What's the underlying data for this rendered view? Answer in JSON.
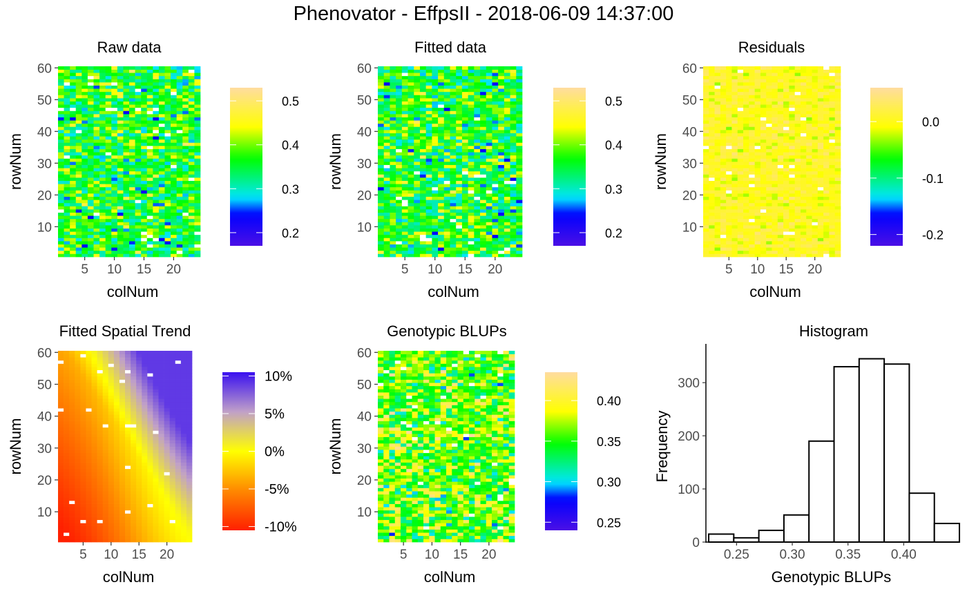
{
  "title": "Phenovator - EffpsII - 2018-06-09 14:37:00",
  "colors": {
    "heat_palette": [
      "#4B0FE6",
      "#0000FF",
      "#00E5FF",
      "#00FF00",
      "#FFFF00",
      "#FFDCA0"
    ],
    "trend_palette": [
      "#FF2000",
      "#FF8800",
      "#FFFF00",
      "#C0A0C8",
      "#3A10F0"
    ],
    "missing": "#FFFFFF",
    "axis_text": "#4D4D4D"
  },
  "chart_data": [
    {
      "type": "heatmap",
      "title": "Raw data",
      "xlabel": "colNum",
      "ylabel": "rowNum",
      "x_range": [
        1,
        24
      ],
      "y_range": [
        1,
        60
      ],
      "x_ticks": [
        5,
        10,
        15,
        20
      ],
      "y_ticks": [
        10,
        20,
        30,
        40,
        50,
        60
      ],
      "value_range": [
        0.17,
        0.53
      ],
      "legend_ticks": [
        {
          "value": 0.2,
          "label": "0.2"
        },
        {
          "value": 0.3,
          "label": "0.3"
        },
        {
          "value": 0.4,
          "label": "0.4"
        },
        {
          "value": 0.5,
          "label": "0.5"
        }
      ],
      "legend_position": "right",
      "approx_mean": 0.36,
      "approx_spread": 0.05,
      "seed": 11
    },
    {
      "type": "heatmap",
      "title": "Fitted data",
      "xlabel": "colNum",
      "ylabel": "rowNum",
      "x_range": [
        1,
        24
      ],
      "y_range": [
        1,
        60
      ],
      "x_ticks": [
        5,
        10,
        15,
        20
      ],
      "y_ticks": [
        10,
        20,
        30,
        40,
        50,
        60
      ],
      "value_range": [
        0.17,
        0.53
      ],
      "legend_ticks": [
        {
          "value": 0.2,
          "label": "0.2"
        },
        {
          "value": 0.3,
          "label": "0.3"
        },
        {
          "value": 0.4,
          "label": "0.4"
        },
        {
          "value": 0.5,
          "label": "0.5"
        }
      ],
      "legend_position": "right",
      "approx_mean": 0.36,
      "approx_spread": 0.05,
      "seed": 23
    },
    {
      "type": "heatmap",
      "title": "Residuals",
      "xlabel": "colNum",
      "ylabel": "rowNum",
      "x_range": [
        1,
        24
      ],
      "y_range": [
        1,
        60
      ],
      "x_ticks": [
        5,
        10,
        15,
        20
      ],
      "y_ticks": [
        10,
        20,
        30,
        40,
        50,
        60
      ],
      "value_range": [
        -0.22,
        0.06
      ],
      "legend_ticks": [
        {
          "value": -0.2,
          "label": "-0.2"
        },
        {
          "value": -0.1,
          "label": "-0.1"
        },
        {
          "value": 0.0,
          "label": "0.0"
        }
      ],
      "legend_position": "right",
      "approx_mean": 0.005,
      "approx_spread": 0.015,
      "seed": 37
    },
    {
      "type": "heatmap",
      "title": "Fitted Spatial Trend",
      "xlabel": "colNum",
      "ylabel": "rowNum",
      "x_range": [
        1,
        24
      ],
      "y_range": [
        1,
        60
      ],
      "x_ticks": [
        5,
        10,
        15,
        20
      ],
      "y_ticks": [
        10,
        20,
        30,
        40,
        50,
        60
      ],
      "value_range": [
        -0.105,
        0.105
      ],
      "legend_ticks": [
        {
          "value": -0.1,
          "label": "-10%"
        },
        {
          "value": -0.05,
          "label": "-5%"
        },
        {
          "value": 0,
          "label": "0%"
        },
        {
          "value": 0.05,
          "label": "5%"
        },
        {
          "value": 0.1,
          "label": "10%"
        }
      ],
      "legend_position": "right",
      "approx_trend": "orange (-8%) at bottom-left and left edge, yellow (0%) across middle, purple (+8%) at top-right",
      "seed": 41
    },
    {
      "type": "heatmap",
      "title": "Genotypic BLUPs",
      "xlabel": "colNum",
      "ylabel": "rowNum",
      "x_range": [
        1,
        24
      ],
      "y_range": [
        1,
        60
      ],
      "x_ticks": [
        5,
        10,
        15,
        20
      ],
      "y_ticks": [
        10,
        20,
        30,
        40,
        50,
        60
      ],
      "value_range": [
        0.24,
        0.435
      ],
      "legend_ticks": [
        {
          "value": 0.25,
          "label": "0.25"
        },
        {
          "value": 0.3,
          "label": "0.30"
        },
        {
          "value": 0.35,
          "label": "0.35"
        },
        {
          "value": 0.4,
          "label": "0.40"
        }
      ],
      "legend_position": "right",
      "approx_mean": 0.36,
      "approx_spread": 0.03,
      "seed": 53
    },
    {
      "type": "bar",
      "title": "Histogram",
      "xlabel": "Genotypic BLUPs",
      "ylabel": "Frequency",
      "bin_edges": [
        0.225,
        0.2475,
        0.27,
        0.2925,
        0.315,
        0.3375,
        0.36,
        0.3825,
        0.405,
        0.4275,
        0.45
      ],
      "values": [
        15,
        8,
        22,
        51,
        190,
        330,
        345,
        335,
        92,
        35
      ],
      "xlim": [
        0.2225,
        0.4475
      ],
      "ylim": [
        0,
        360
      ],
      "x_ticks": [
        {
          "value": 0.25,
          "label": "0.25"
        },
        {
          "value": 0.3,
          "label": "0.30"
        },
        {
          "value": 0.35,
          "label": "0.35"
        },
        {
          "value": 0.4,
          "label": "0.40"
        }
      ],
      "y_ticks": [
        {
          "value": 0,
          "label": "0"
        },
        {
          "value": 100,
          "label": "100"
        },
        {
          "value": 200,
          "label": "200"
        },
        {
          "value": 300,
          "label": "300"
        }
      ]
    }
  ]
}
